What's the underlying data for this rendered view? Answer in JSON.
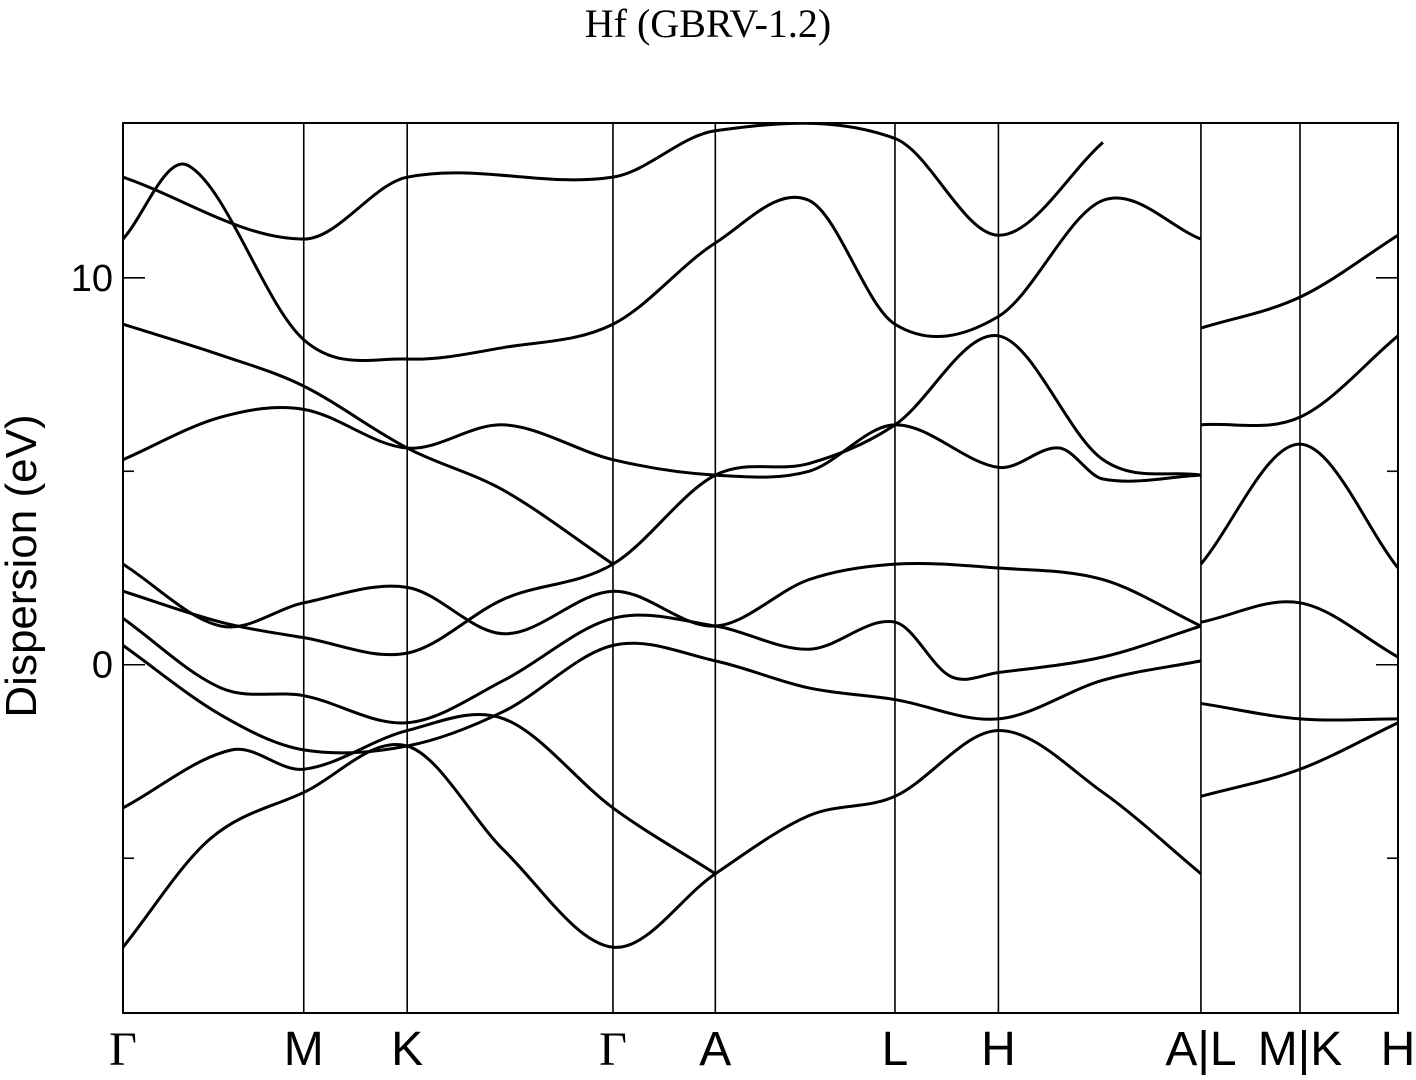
{
  "chart_data": {
    "type": "line",
    "title": "Hf (GBRV-1.2)",
    "xlabel": "",
    "ylabel": "Dispersion (eV)",
    "ylim": [
      -9,
      14
    ],
    "xlim": [
      0,
      11.71
    ],
    "yticks": [
      0,
      10
    ],
    "ytick_minor": [
      -5,
      5
    ],
    "grid": false,
    "legend": "none",
    "color": "#000000",
    "kpoints": [
      {
        "label": "Γ",
        "x": 0
      },
      {
        "label": "M",
        "x": 1.66
      },
      {
        "label": "K",
        "x": 2.61
      },
      {
        "label": "Γ",
        "x": 4.5
      },
      {
        "label": "A",
        "x": 5.44
      },
      {
        "label": "L",
        "x": 7.09
      },
      {
        "label": "H",
        "x": 8.04
      },
      {
        "label": "A|L",
        "x": 9.9
      },
      {
        "label": "M|K",
        "x": 10.81
      },
      {
        "label": "H",
        "x": 11.71
      }
    ],
    "series": [
      {
        "values": [
          [
            0,
            -7.3
          ],
          [
            0.8,
            -4.5
          ],
          [
            1.66,
            -3.3
          ],
          [
            2.61,
            -2.1
          ],
          [
            3.5,
            -4.8
          ],
          [
            4.5,
            -7.3
          ],
          [
            5.44,
            -5.4
          ],
          [
            6.3,
            -3.9
          ],
          [
            7.09,
            -3.4
          ],
          [
            8.04,
            -1.7
          ],
          [
            9.0,
            -3.3
          ],
          [
            9.9,
            -5.4
          ]
        ]
      },
      {
        "values": [
          [
            0,
            -3.7
          ],
          [
            1.0,
            -2.2
          ],
          [
            1.66,
            -2.7
          ],
          [
            2.61,
            -1.7
          ],
          [
            3.5,
            -1.4
          ],
          [
            4.5,
            -3.7
          ],
          [
            5.44,
            -5.4
          ]
        ]
      },
      {
        "values": [
          [
            0,
            0.5
          ],
          [
            0.9,
            -1.3
          ],
          [
            1.66,
            -2.2
          ],
          [
            2.61,
            -2.1
          ],
          [
            3.5,
            -1.2
          ],
          [
            4.5,
            0.5
          ],
          [
            5.44,
            0.1
          ],
          [
            6.3,
            -0.6
          ],
          [
            7.09,
            -0.9
          ],
          [
            8.04,
            -1.4
          ],
          [
            9.0,
            -0.4
          ],
          [
            9.9,
            0.1
          ]
        ]
      },
      {
        "values": [
          [
            0,
            1.2
          ],
          [
            0.9,
            -0.6
          ],
          [
            1.66,
            -0.8
          ],
          [
            2.61,
            -1.5
          ],
          [
            3.5,
            -0.4
          ],
          [
            4.5,
            1.2
          ],
          [
            5.44,
            1.0
          ],
          [
            6.3,
            0.4
          ],
          [
            7.09,
            1.1
          ],
          [
            7.6,
            -0.3
          ],
          [
            8.04,
            -0.2
          ],
          [
            9.0,
            0.2
          ],
          [
            9.9,
            1.0
          ]
        ]
      },
      {
        "values": [
          [
            0,
            1.9
          ],
          [
            0.9,
            1.1
          ],
          [
            1.66,
            0.7
          ],
          [
            2.61,
            0.3
          ],
          [
            3.5,
            1.7
          ],
          [
            4.5,
            2.6
          ],
          [
            5.44,
            4.9
          ],
          [
            6.3,
            5.2
          ],
          [
            7.09,
            6.2
          ],
          [
            8.04,
            8.5
          ],
          [
            9.0,
            5.3
          ],
          [
            9.9,
            4.9
          ]
        ]
      },
      {
        "values": [
          [
            0,
            2.6
          ],
          [
            0.9,
            1.0
          ],
          [
            1.66,
            1.6
          ],
          [
            2.61,
            2.0
          ],
          [
            3.5,
            0.8
          ],
          [
            4.5,
            1.9
          ],
          [
            5.44,
            1.0
          ],
          [
            6.3,
            2.2
          ],
          [
            7.09,
            2.6
          ],
          [
            8.04,
            2.5
          ],
          [
            9.0,
            2.2
          ],
          [
            9.9,
            1.0
          ]
        ]
      },
      {
        "values": [
          [
            0,
            5.3
          ],
          [
            0.9,
            6.4
          ],
          [
            1.66,
            6.6
          ],
          [
            2.61,
            5.6
          ],
          [
            3.5,
            6.2
          ],
          [
            4.5,
            5.3
          ],
          [
            5.44,
            4.9
          ],
          [
            6.3,
            5.0
          ],
          [
            7.09,
            6.2
          ],
          [
            8.04,
            5.1
          ],
          [
            8.6,
            5.6
          ],
          [
            9.0,
            4.8
          ],
          [
            9.9,
            4.9
          ]
        ]
      },
      {
        "values": [
          [
            0,
            8.8
          ],
          [
            0.9,
            8.0
          ],
          [
            1.66,
            7.2
          ],
          [
            2.61,
            5.6
          ],
          [
            3.5,
            4.5
          ],
          [
            4.5,
            2.6
          ]
        ]
      },
      {
        "values": [
          [
            0,
            11.0
          ],
          [
            0.6,
            12.9
          ],
          [
            1.66,
            8.4
          ],
          [
            2.61,
            7.9
          ],
          [
            3.5,
            8.2
          ],
          [
            4.5,
            8.8
          ],
          [
            5.44,
            10.9
          ],
          [
            6.3,
            12.0
          ],
          [
            7.09,
            8.8
          ],
          [
            8.04,
            9.0
          ],
          [
            9.0,
            12.0
          ],
          [
            9.9,
            11.0
          ]
        ]
      },
      {
        "values": [
          [
            0,
            12.6
          ],
          [
            1.66,
            11.0
          ],
          [
            2.61,
            12.6
          ],
          [
            4.5,
            12.6
          ],
          [
            5.44,
            13.8
          ],
          [
            7.09,
            13.6
          ],
          [
            8.04,
            11.1
          ],
          [
            9.0,
            13.5
          ]
        ]
      },
      {
        "values": [
          [
            9.9,
            8.7
          ],
          [
            10.81,
            9.5
          ],
          [
            11.71,
            11.1
          ]
        ]
      },
      {
        "values": [
          [
            9.9,
            6.2
          ],
          [
            10.81,
            6.4
          ],
          [
            11.71,
            8.5
          ]
        ]
      },
      {
        "values": [
          [
            9.9,
            2.6
          ],
          [
            10.81,
            5.7
          ],
          [
            11.71,
            2.5
          ]
        ]
      },
      {
        "values": [
          [
            9.9,
            1.1
          ],
          [
            10.81,
            1.6
          ],
          [
            11.71,
            0.2
          ]
        ]
      },
      {
        "values": [
          [
            9.9,
            -1.0
          ],
          [
            10.81,
            -1.4
          ],
          [
            11.71,
            -1.4
          ]
        ]
      },
      {
        "values": [
          [
            9.9,
            -3.4
          ],
          [
            10.81,
            -2.7
          ],
          [
            11.71,
            -1.5
          ]
        ]
      }
    ]
  }
}
